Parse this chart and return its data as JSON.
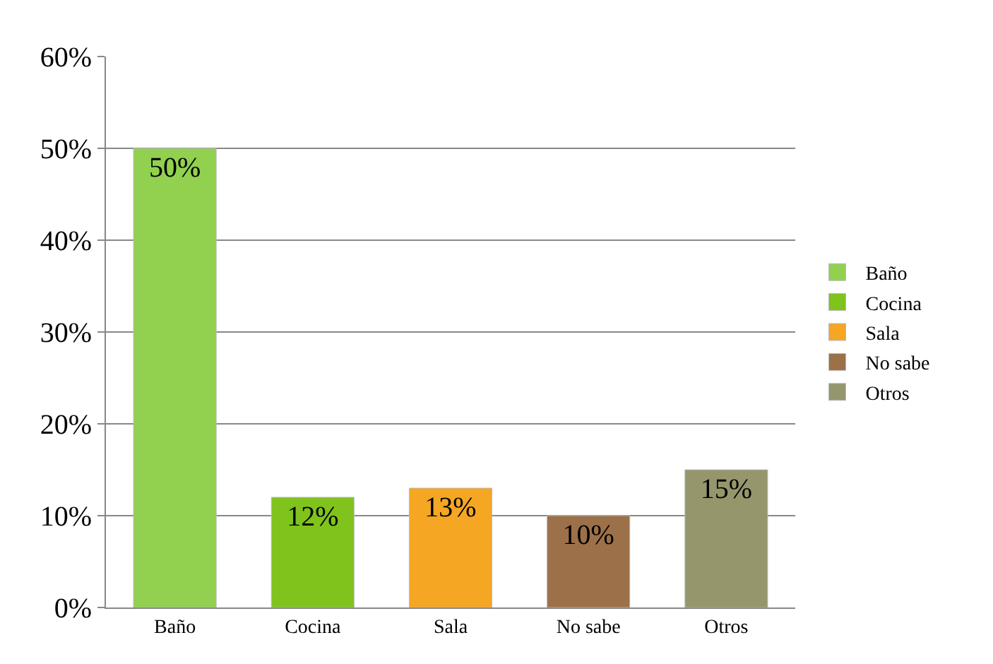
{
  "chart_data": {
    "type": "bar",
    "categories": [
      "Baño",
      "Cocina",
      "Sala",
      "No sabe",
      "Otros"
    ],
    "series": [
      {
        "name": "Baño",
        "color": "#92d050",
        "values": [
          50,
          null,
          null,
          null,
          null
        ],
        "value_labels": [
          "50%",
          null,
          null,
          null,
          null
        ]
      },
      {
        "name": "Cocina",
        "color": "#7fc31c",
        "values": [
          null,
          12,
          null,
          null,
          null
        ],
        "value_labels": [
          null,
          "12%",
          null,
          null,
          null
        ]
      },
      {
        "name": "Sala",
        "color": "#f5a623",
        "values": [
          null,
          null,
          13,
          null,
          null
        ],
        "value_labels": [
          null,
          null,
          "13%",
          null,
          null
        ]
      },
      {
        "name": "No sabe",
        "color": "#9c7048",
        "values": [
          null,
          null,
          null,
          10,
          null
        ],
        "value_labels": [
          null,
          null,
          null,
          "10%",
          null
        ]
      },
      {
        "name": "Otros",
        "color": "#95966b",
        "values": [
          null,
          null,
          null,
          null,
          15
        ],
        "value_labels": [
          null,
          null,
          null,
          null,
          "15%"
        ]
      }
    ],
    "ylim": [
      0,
      60
    ],
    "yticks": [
      {
        "value": 0,
        "label": "0%"
      },
      {
        "value": 10,
        "label": "10%"
      },
      {
        "value": 20,
        "label": "20%"
      },
      {
        "value": 30,
        "label": "30%"
      },
      {
        "value": 40,
        "label": "40%"
      },
      {
        "value": 50,
        "label": "50%"
      },
      {
        "value": 60,
        "label": "60%"
      }
    ],
    "grid": "y",
    "legend": "right"
  }
}
